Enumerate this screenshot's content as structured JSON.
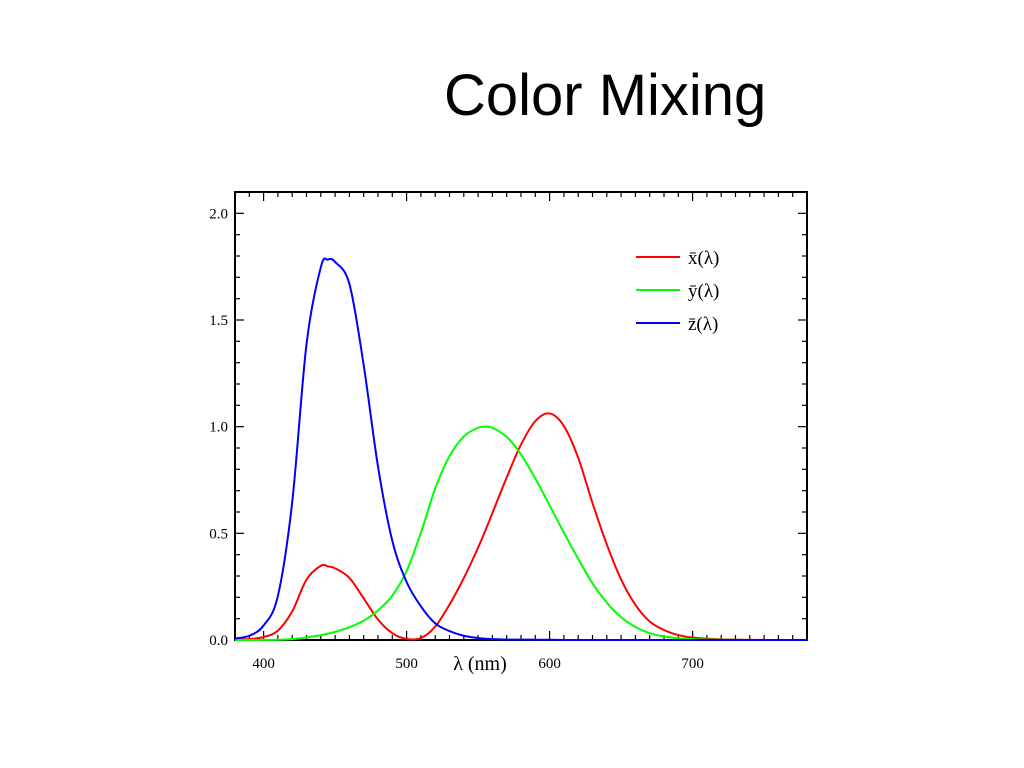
{
  "slide": {
    "title": "Color Mixing"
  },
  "chart_data": {
    "type": "line",
    "xlabel": "λ (nm)",
    "ylabel": "",
    "xlim": [
      380,
      780
    ],
    "ylim": [
      0,
      2.1
    ],
    "x_ticks": [
      400,
      500,
      600,
      700
    ],
    "y_ticks": [
      0.0,
      0.5,
      1.0,
      1.5,
      2.0
    ],
    "x_tick_labels": [
      "400",
      "500",
      "600",
      "700"
    ],
    "y_tick_labels": [
      "0.0",
      "0.5",
      "1.0",
      "1.5",
      "2.0"
    ],
    "grid": false,
    "legend_position": "top-right",
    "x": [
      380,
      390,
      400,
      410,
      420,
      430,
      440,
      445,
      450,
      460,
      470,
      480,
      490,
      500,
      510,
      520,
      530,
      540,
      550,
      555,
      560,
      570,
      580,
      590,
      600,
      610,
      620,
      630,
      640,
      650,
      660,
      670,
      680,
      690,
      700,
      720,
      750,
      780
    ],
    "series": [
      {
        "name": "x̄(λ)",
        "color": "#ff0000",
        "values": [
          0.001,
          0.004,
          0.014,
          0.044,
          0.134,
          0.283,
          0.348,
          0.345,
          0.336,
          0.291,
          0.195,
          0.096,
          0.032,
          0.005,
          0.009,
          0.063,
          0.166,
          0.29,
          0.433,
          0.512,
          0.595,
          0.762,
          0.916,
          1.026,
          1.062,
          1.003,
          0.854,
          0.642,
          0.448,
          0.284,
          0.165,
          0.087,
          0.047,
          0.023,
          0.011,
          0.003,
          0.0003,
          4e-05
        ]
      },
      {
        "name": "ȳ(λ)",
        "color": "#00ff00",
        "values": [
          0.0,
          0.0001,
          0.0004,
          0.0012,
          0.004,
          0.012,
          0.023,
          0.03,
          0.038,
          0.06,
          0.091,
          0.139,
          0.208,
          0.323,
          0.503,
          0.71,
          0.862,
          0.954,
          0.995,
          1.0,
          0.995,
          0.952,
          0.87,
          0.757,
          0.631,
          0.503,
          0.381,
          0.265,
          0.175,
          0.107,
          0.061,
          0.032,
          0.017,
          0.008,
          0.004,
          0.001,
          0.0001,
          1e-05
        ]
      },
      {
        "name": "z̄(λ)",
        "color": "#0000ff",
        "values": [
          0.007,
          0.02,
          0.068,
          0.207,
          0.646,
          1.386,
          1.747,
          1.783,
          1.772,
          1.669,
          1.288,
          0.813,
          0.465,
          0.272,
          0.158,
          0.078,
          0.042,
          0.02,
          0.009,
          0.006,
          0.004,
          0.002,
          0.002,
          0.001,
          0.001,
          0.0003,
          0.0002,
          0.0,
          0.0,
          0.0,
          0.0,
          0.0,
          0.0,
          0.0,
          0.0,
          0.0,
          0.0,
          0.0
        ]
      }
    ]
  }
}
